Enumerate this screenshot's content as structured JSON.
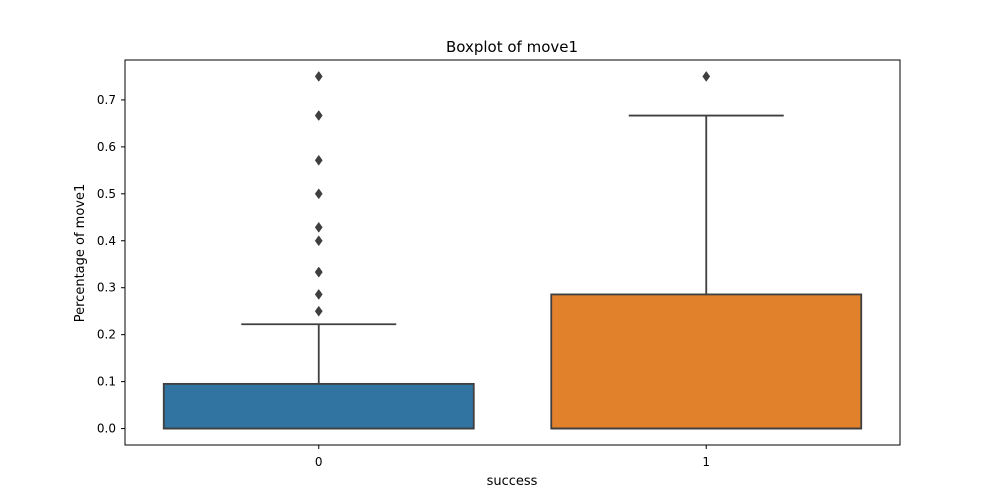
{
  "chart_data": {
    "type": "box",
    "title": "Boxplot of move1",
    "xlabel": "success",
    "ylabel": "Percentage of move1",
    "categories": [
      "0",
      "1"
    ],
    "ylim": [
      -0.035,
      0.785
    ],
    "yticks": [
      0.0,
      0.1,
      0.2,
      0.3,
      0.4,
      0.5,
      0.6,
      0.7
    ],
    "ytick_labels": [
      "0.0",
      "0.1",
      "0.2",
      "0.3",
      "0.4",
      "0.5",
      "0.6",
      "0.7"
    ],
    "grid": false,
    "boxes": [
      {
        "category": "0",
        "color": "#3274a1",
        "whisker_low": 0.0,
        "q1": 0.0,
        "median": 0.0,
        "q3": 0.0952,
        "whisker_high": 0.2222,
        "outliers": [
          0.25,
          0.2857,
          0.3333,
          0.3333,
          0.4,
          0.4286,
          0.5,
          0.5714,
          0.6667,
          0.75
        ]
      },
      {
        "category": "1",
        "color": "#e1812c",
        "whisker_low": 0.0,
        "q1": 0.0,
        "median": 0.0,
        "q3": 0.2857,
        "whisker_high": 0.6667,
        "outliers": [
          0.75
        ]
      }
    ]
  },
  "colors": {
    "box_edge": "#3f3f3f",
    "axis": "#000000"
  }
}
